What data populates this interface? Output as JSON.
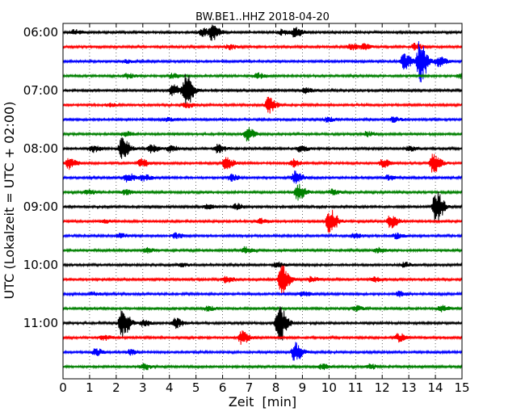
{
  "chart_data": {
    "type": "line",
    "title": "BW.BE1..HHZ 2018-04-20",
    "xlabel": "Zeit  [min]",
    "ylabel": "UTC (Lokalzeit = UTC + 02:00)",
    "xlim": [
      0,
      15
    ],
    "x_ticks": [
      "0",
      "1",
      "2",
      "3",
      "4",
      "5",
      "6",
      "7",
      "8",
      "9",
      "10",
      "11",
      "12",
      "13",
      "14",
      "15"
    ],
    "y_ticks": [
      "06:00",
      "07:00",
      "08:00",
      "09:00",
      "10:00",
      "11:00"
    ],
    "grid": "vertical dotted",
    "trace_interval_minutes": 15,
    "series": [
      {
        "start": "06:00",
        "color": "#000000",
        "events": [
          [
            0.4,
            3
          ],
          [
            5.6,
            9
          ],
          [
            5.2,
            5
          ],
          [
            8.7,
            6
          ],
          [
            8.2,
            3
          ]
        ]
      },
      {
        "start": "06:15",
        "color": "#ff0000",
        "events": [
          [
            6.2,
            3
          ],
          [
            10.8,
            5
          ],
          [
            11.3,
            3
          ],
          [
            13.2,
            4
          ]
        ]
      },
      {
        "start": "06:30",
        "color": "#0000ff",
        "events": [
          [
            13.4,
            26
          ],
          [
            12.8,
            10
          ],
          [
            14.1,
            6
          ],
          [
            2.3,
            2
          ]
        ]
      },
      {
        "start": "06:45",
        "color": "#008000",
        "events": [
          [
            2.4,
            3
          ],
          [
            4.1,
            3
          ],
          [
            7.3,
            3
          ],
          [
            14.9,
            3
          ]
        ]
      },
      {
        "start": "07:00",
        "color": "#000000",
        "events": [
          [
            4.6,
            22
          ],
          [
            4.1,
            7
          ],
          [
            9.1,
            3
          ]
        ]
      },
      {
        "start": "07:15",
        "color": "#ff0000",
        "events": [
          [
            7.7,
            10
          ],
          [
            1.7,
            2
          ],
          [
            4.6,
            3
          ]
        ]
      },
      {
        "start": "07:30",
        "color": "#0000ff",
        "events": [
          [
            9.9,
            3
          ],
          [
            12.4,
            3
          ],
          [
            3.9,
            2
          ]
        ]
      },
      {
        "start": "07:45",
        "color": "#008000",
        "events": [
          [
            6.9,
            8
          ],
          [
            2.3,
            3
          ],
          [
            11.4,
            3
          ]
        ]
      },
      {
        "start": "08:00",
        "color": "#000000",
        "events": [
          [
            2.2,
            14
          ],
          [
            1.1,
            4
          ],
          [
            3.3,
            5
          ],
          [
            4.0,
            4
          ],
          [
            5.8,
            5
          ],
          [
            8.9,
            4
          ],
          [
            13.0,
            3
          ]
        ]
      },
      {
        "start": "08:15",
        "color": "#ff0000",
        "events": [
          [
            0.2,
            7
          ],
          [
            6.1,
            8
          ],
          [
            13.9,
            12
          ],
          [
            2.9,
            5
          ],
          [
            8.6,
            5
          ],
          [
            12.0,
            5
          ]
        ]
      },
      {
        "start": "08:30",
        "color": "#0000ff",
        "events": [
          [
            8.7,
            8
          ],
          [
            2.4,
            6
          ],
          [
            3.0,
            4
          ],
          [
            6.3,
            4
          ],
          [
            12.2,
            3
          ]
        ]
      },
      {
        "start": "08:45",
        "color": "#008000",
        "events": [
          [
            8.8,
            10
          ],
          [
            0.9,
            3
          ],
          [
            2.3,
            3
          ],
          [
            10.1,
            3
          ]
        ]
      },
      {
        "start": "09:00",
        "color": "#000000",
        "events": [
          [
            14.0,
            20
          ],
          [
            6.5,
            4
          ],
          [
            5.4,
            3
          ]
        ]
      },
      {
        "start": "09:15",
        "color": "#ff0000",
        "events": [
          [
            10.0,
            16
          ],
          [
            12.3,
            8
          ],
          [
            1.5,
            2
          ],
          [
            7.4,
            3
          ]
        ]
      },
      {
        "start": "09:30",
        "color": "#0000ff",
        "events": [
          [
            2.1,
            3
          ],
          [
            4.2,
            3
          ],
          [
            10.9,
            3
          ],
          [
            12.5,
            3
          ]
        ]
      },
      {
        "start": "09:45",
        "color": "#008000",
        "events": [
          [
            6.8,
            4
          ],
          [
            3.1,
            3
          ],
          [
            11.8,
            3
          ]
        ]
      },
      {
        "start": "10:00",
        "color": "#000000",
        "events": [
          [
            8.0,
            3
          ],
          [
            4.4,
            2
          ],
          [
            12.8,
            3
          ]
        ]
      },
      {
        "start": "10:15",
        "color": "#ff0000",
        "events": [
          [
            8.2,
            18
          ],
          [
            6.1,
            4
          ],
          [
            11.7,
            3
          ],
          [
            9.3,
            3
          ]
        ]
      },
      {
        "start": "10:30",
        "color": "#0000ff",
        "events": [
          [
            1.1,
            2
          ],
          [
            9.0,
            3
          ],
          [
            12.6,
            3
          ]
        ]
      },
      {
        "start": "10:45",
        "color": "#008000",
        "events": [
          [
            14.2,
            4
          ],
          [
            11.0,
            3
          ],
          [
            5.4,
            3
          ]
        ]
      },
      {
        "start": "11:00",
        "color": "#000000",
        "events": [
          [
            2.2,
            18
          ],
          [
            8.1,
            26
          ],
          [
            4.2,
            6
          ],
          [
            3.0,
            4
          ]
        ]
      },
      {
        "start": "11:15",
        "color": "#ff0000",
        "events": [
          [
            6.7,
            8
          ],
          [
            12.6,
            5
          ],
          [
            1.5,
            3
          ]
        ]
      },
      {
        "start": "11:30",
        "color": "#0000ff",
        "events": [
          [
            8.7,
            12
          ],
          [
            1.2,
            4
          ],
          [
            2.5,
            3
          ]
        ]
      },
      {
        "start": "11:45",
        "color": "#008000",
        "events": [
          [
            3.0,
            4
          ],
          [
            9.7,
            3
          ],
          [
            11.5,
            3
          ]
        ]
      }
    ]
  }
}
